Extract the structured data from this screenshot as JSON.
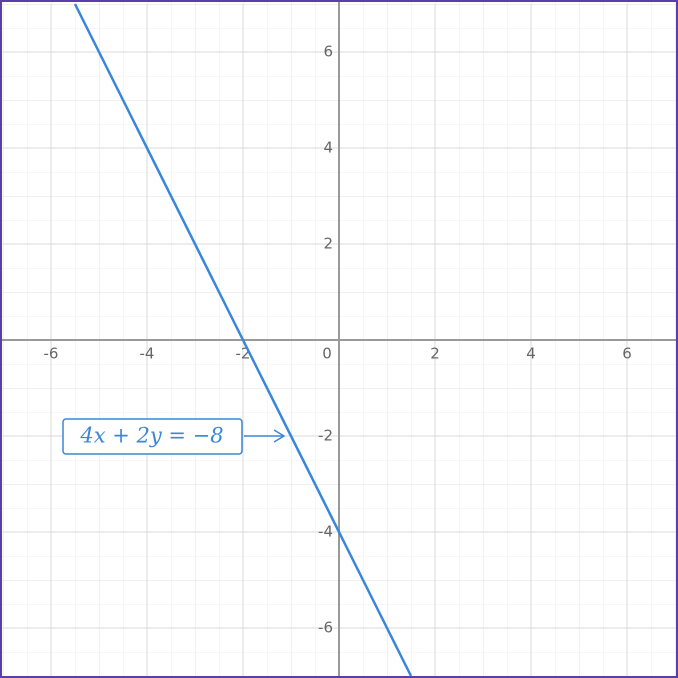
{
  "chart_data": {
    "type": "line",
    "x": [
      -5.5,
      1.5
    ],
    "values": [
      7,
      -7
    ],
    "color": "#3a87d6",
    "xlim": [
      -7,
      7
    ],
    "ylim": [
      -7,
      7
    ],
    "xticks": [
      -6,
      -4,
      -2,
      0,
      2,
      4,
      6
    ],
    "yticks": [
      -6,
      -4,
      -2,
      2,
      4,
      6
    ],
    "grid": true,
    "annotation": "4x + 2y = −8"
  }
}
